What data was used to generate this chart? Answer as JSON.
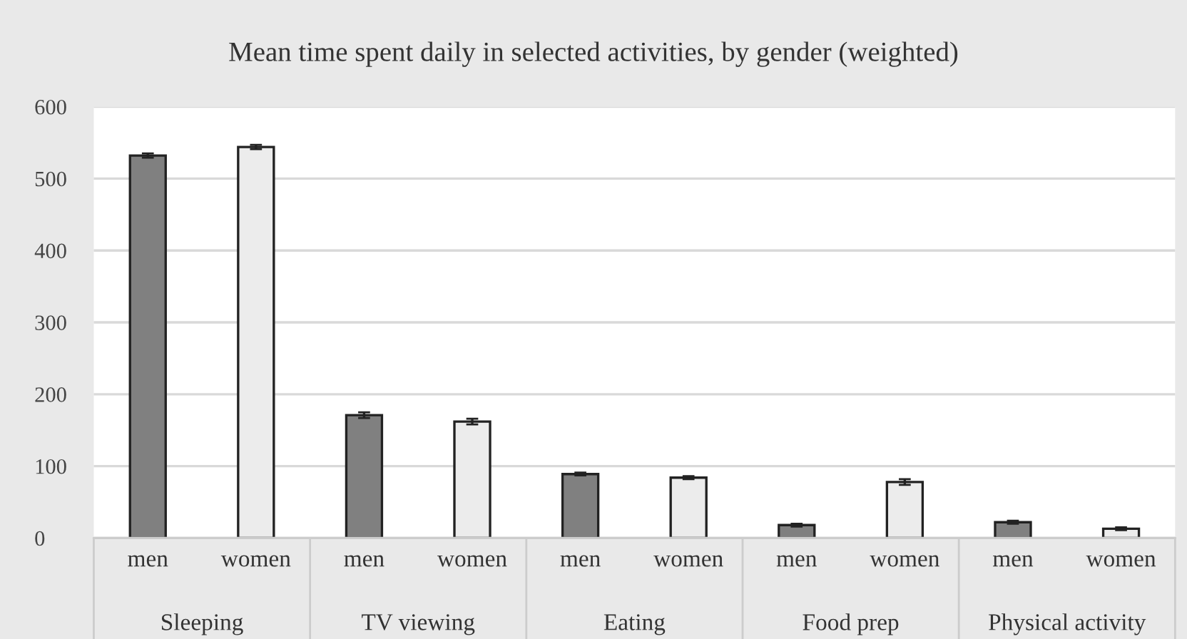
{
  "chart_data": {
    "type": "bar",
    "title": "Mean time spent daily in selected activities, by gender (weighted)",
    "categories": [
      "Sleeping",
      "TV viewing",
      "Eating",
      "Food prep",
      "Physical activity"
    ],
    "series": [
      {
        "name": "men",
        "color": "#808080",
        "values": [
          532,
          171,
          89,
          18,
          22
        ],
        "errors": [
          3,
          4,
          2,
          2,
          2
        ]
      },
      {
        "name": "women",
        "color": "#ececec",
        "values": [
          544,
          162,
          84,
          78,
          13
        ],
        "errors": [
          3,
          4,
          2,
          4,
          2
        ]
      }
    ],
    "ylim": [
      0,
      600
    ],
    "yticks": [
      0,
      100,
      200,
      300,
      400,
      500,
      600
    ],
    "grid": "y",
    "legend": false
  }
}
